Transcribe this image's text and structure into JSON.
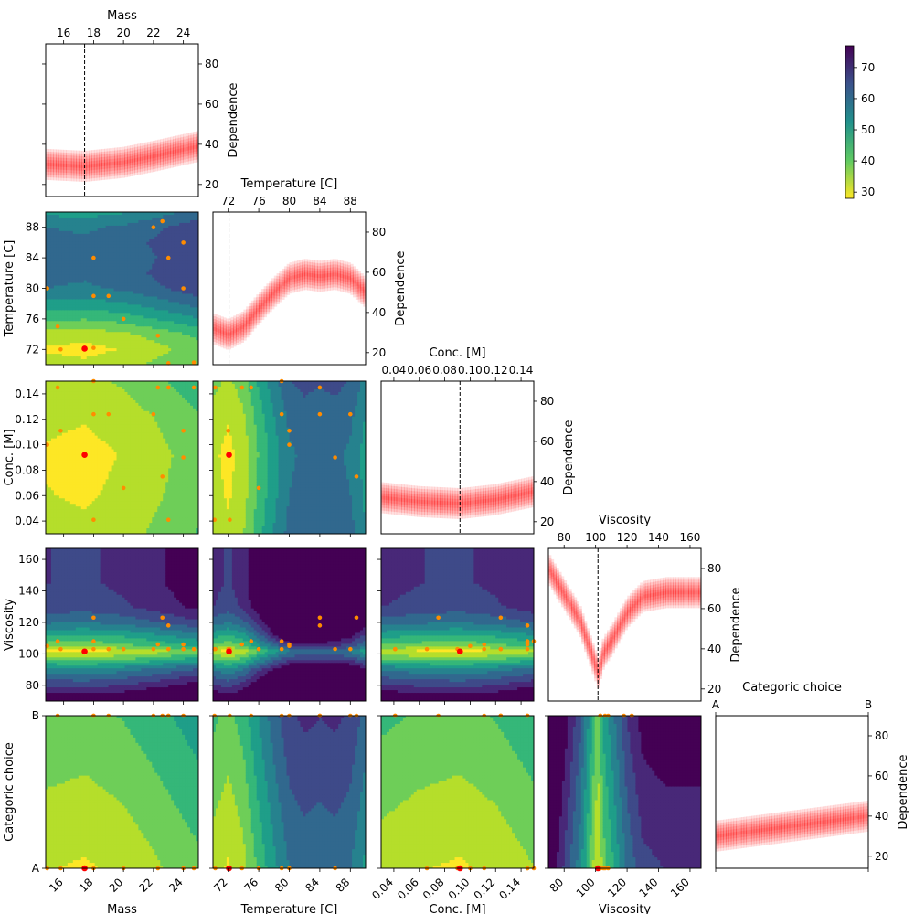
{
  "figure": {
    "type": "corner-plot"
  },
  "colorbar": {
    "cmap": "viridis_r",
    "range": [
      28,
      77
    ],
    "ticks": [
      30,
      40,
      50,
      60,
      70
    ],
    "tick_labels": [
      "30",
      "40",
      "50",
      "60",
      "70"
    ]
  },
  "variables": [
    {
      "key": "mass",
      "label": "Mass",
      "range": [
        14.8,
        25
      ],
      "ticks": [
        16,
        18,
        20,
        22,
        24
      ],
      "tick_labels": [
        "16",
        "18",
        "20",
        "22",
        "24"
      ],
      "best": 17.4
    },
    {
      "key": "temp",
      "label": "Temperature [C]",
      "range": [
        70,
        90
      ],
      "ticks": [
        72,
        76,
        80,
        84,
        88
      ],
      "tick_labels": [
        "72",
        "76",
        "80",
        "84",
        "88"
      ],
      "best": 72.1
    },
    {
      "key": "conc",
      "label": "Conc. [M]",
      "range": [
        0.03,
        0.15
      ],
      "ticks": [
        0.04,
        0.06,
        0.08,
        0.1,
        0.12,
        0.14
      ],
      "tick_labels": [
        "0.04",
        "0.06",
        "0.08",
        "0.10",
        "0.12",
        "0.14"
      ],
      "best": 0.092
    },
    {
      "key": "visc",
      "label": "Viscosity",
      "range": [
        70,
        167
      ],
      "ticks": [
        80,
        100,
        120,
        140,
        160
      ],
      "tick_labels": [
        "80",
        "100",
        "120",
        "140",
        "160"
      ],
      "best": 101.5
    },
    {
      "key": "cat",
      "label": "Categoric choice",
      "range": [
        0,
        1
      ],
      "ticks": [
        0,
        1
      ],
      "tick_labels": [
        "A",
        "B"
      ],
      "best": 0
    }
  ],
  "dependence_axis": {
    "label": "Dependence",
    "range": [
      14,
      90
    ],
    "ticks": [
      20,
      40,
      60,
      80
    ],
    "tick_labels": [
      "20",
      "40",
      "60",
      "80"
    ]
  },
  "chart_data": {
    "type": "heatmap",
    "marginals": {
      "mass": {
        "x": [
          14.8,
          17.4,
          20,
          22,
          25
        ],
        "y": [
          30,
          29,
          31,
          34,
          39
        ]
      },
      "temp": {
        "x": [
          70,
          72,
          74,
          76,
          78,
          80,
          82,
          84,
          86,
          88,
          90
        ],
        "y": [
          32,
          29,
          33,
          42,
          50,
          57,
          59,
          58,
          59,
          57,
          50
        ]
      },
      "conc": {
        "x": [
          0.03,
          0.06,
          0.092,
          0.12,
          0.15
        ],
        "y": [
          32,
          30,
          29,
          31,
          35
        ]
      },
      "visc": {
        "x": [
          70,
          90,
          101.5,
          105,
          110,
          120,
          130,
          145,
          167
        ],
        "y": [
          80,
          54,
          28,
          38,
          44,
          58,
          66,
          68,
          68
        ]
      },
      "cat": {
        "x": [
          0,
          1
        ],
        "y": [
          30,
          40
        ]
      }
    },
    "samples": [
      {
        "mass": 14.9,
        "temp": 80.0,
        "conc": 0.1,
        "visc": 105,
        "cat": 0
      },
      {
        "mass": 15.6,
        "temp": 75.0,
        "conc": 0.145,
        "visc": 108,
        "cat": 1
      },
      {
        "mass": 15.8,
        "temp": 72.0,
        "conc": 0.111,
        "visc": 103,
        "cat": 0
      },
      {
        "mass": 18.0,
        "temp": 84.0,
        "conc": 0.124,
        "visc": 123,
        "cat": 1
      },
      {
        "mass": 18.0,
        "temp": 79.0,
        "conc": 0.15,
        "visc": 108,
        "cat": 0
      },
      {
        "mass": 18.0,
        "temp": 72.2,
        "conc": 0.041,
        "visc": 103,
        "cat": 1
      },
      {
        "mass": 19.0,
        "temp": 79.0,
        "conc": 0.124,
        "visc": 103,
        "cat": 1
      },
      {
        "mass": 20.0,
        "temp": 76.0,
        "conc": 0.066,
        "visc": 103,
        "cat": 0
      },
      {
        "mass": 22.0,
        "temp": 88.0,
        "conc": 0.124,
        "visc": 103,
        "cat": 1
      },
      {
        "mass": 22.6,
        "temp": 88.8,
        "conc": 0.075,
        "visc": 123,
        "cat": 1
      },
      {
        "mass": 23.0,
        "temp": 84.0,
        "conc": 0.145,
        "visc": 118,
        "cat": 1
      },
      {
        "mass": 22.3,
        "temp": 73.8,
        "conc": 0.145,
        "visc": 106,
        "cat": 0
      },
      {
        "mass": 23.0,
        "temp": 70.2,
        "conc": 0.041,
        "visc": 103,
        "cat": 1
      },
      {
        "mass": 24.0,
        "temp": 80.0,
        "conc": 0.111,
        "visc": 106,
        "cat": 1
      },
      {
        "mass": 24.0,
        "temp": 86.0,
        "conc": 0.09,
        "visc": 103,
        "cat": 0
      },
      {
        "mass": 24.7,
        "temp": 70.3,
        "conc": 0.145,
        "visc": 103,
        "cat": 0
      }
    ],
    "best": {
      "mass": 17.4,
      "temp": 72.1,
      "conc": 0.092,
      "visc": 101.5,
      "cat": 0
    }
  }
}
